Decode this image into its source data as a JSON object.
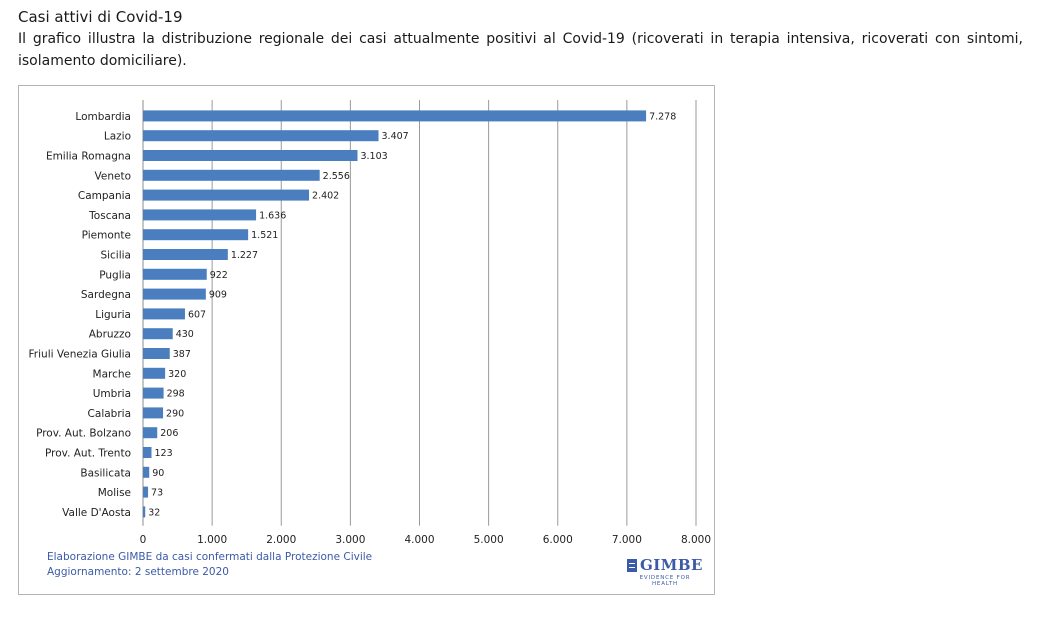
{
  "heading": {
    "title": "Casi attivi di Covid-19",
    "description": "Il grafico illustra la distribuzione regionale dei casi attualmente positivi al Covid-19 (ricoverati in terapia intensiva, ricoverati con sintomi, isolamento domiciliare)."
  },
  "chart_data": {
    "type": "bar",
    "orientation": "horizontal",
    "categories": [
      "Lombardia",
      "Lazio",
      "Emilia Romagna",
      "Veneto",
      "Campania",
      "Toscana",
      "Piemonte",
      "Sicilia",
      "Puglia",
      "Sardegna",
      "Liguria",
      "Abruzzo",
      "Friuli Venezia Giulia",
      "Marche",
      "Umbria",
      "Calabria",
      "Prov. Aut. Bolzano",
      "Prov. Aut. Trento",
      "Basilicata",
      "Molise",
      "Valle D'Aosta"
    ],
    "values": [
      7278,
      3407,
      3103,
      2556,
      2402,
      1636,
      1521,
      1227,
      922,
      909,
      607,
      430,
      387,
      320,
      298,
      290,
      206,
      123,
      90,
      73,
      32
    ],
    "value_labels": [
      "7.278",
      "3.407",
      "3.103",
      "2.556",
      "2.402",
      "1.636",
      "1.521",
      "1.227",
      "922",
      "909",
      "607",
      "430",
      "387",
      "320",
      "298",
      "290",
      "206",
      "123",
      "90",
      "73",
      "32"
    ],
    "xlim": [
      0,
      8000
    ],
    "ticks": [
      0,
      1000,
      2000,
      3000,
      4000,
      5000,
      6000,
      7000,
      8000
    ],
    "tick_labels": [
      "0",
      "1.000",
      "2.000",
      "3.000",
      "4.000",
      "5.000",
      "6.000",
      "7.000",
      "8.000"
    ],
    "grid": "vertical",
    "legend": "none",
    "bar_color": "#4a7ebf"
  },
  "footer": {
    "source": "Elaborazione GIMBE da casi confermati dalla Protezione Civile",
    "updated": "Aggiornamento: 2 settembre 2020"
  },
  "logo": {
    "brand": "GIMBE",
    "tagline": "EVIDENCE FOR HEALTH",
    "color": "#3b5aa8"
  }
}
